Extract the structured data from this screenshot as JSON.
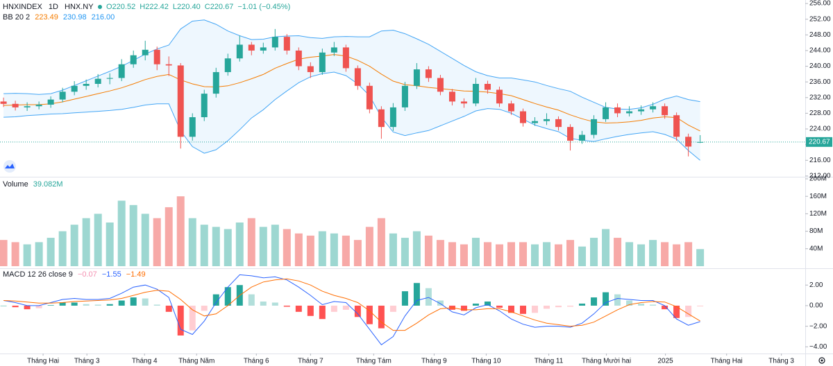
{
  "chart_data": [
    {
      "type": "candlestick",
      "title": "HNXINDEX",
      "interval": "1D",
      "exchange": "HNX.NY",
      "legend": [
        "O220.52",
        "H222.42",
        "L220.40",
        "C220.67",
        "−1.01 (−0.45%)"
      ],
      "up_color": "#26a69a",
      "down_color": "#ef5350",
      "xlim": [
        -0.3,
        67.9
      ],
      "xticks": [
        {
          "value": 3.35,
          "label": "Tháng Hai"
        },
        {
          "value": 7.06,
          "label": "Tháng 3"
        },
        {
          "value": 11.94,
          "label": "Tháng 4"
        },
        {
          "value": 16.35,
          "label": "Tháng Năm"
        },
        {
          "value": 21.41,
          "label": "Tháng 6"
        },
        {
          "value": 26.0,
          "label": "Tháng 7"
        },
        {
          "value": 31.35,
          "label": "Tháng Tám"
        },
        {
          "value": 36.47,
          "label": "Tháng 9"
        },
        {
          "value": 40.88,
          "label": "Tháng 10"
        },
        {
          "value": 46.18,
          "label": "Tháng 11"
        },
        {
          "value": 51.06,
          "label": "Tháng Mười hai"
        },
        {
          "value": 56.06,
          "label": "2025"
        },
        {
          "value": 61.24,
          "label": "Tháng Hai"
        },
        {
          "value": 65.88,
          "label": "Tháng 3"
        }
      ],
      "ylim": [
        211.8,
        256.9
      ],
      "yticks": [
        {
          "value": 212,
          "label": "212.00"
        },
        {
          "value": 216,
          "label": "216.00"
        },
        {
          "value": 220,
          "label": "220.00"
        },
        {
          "value": 224,
          "label": "224.00"
        },
        {
          "value": 228,
          "label": "228.00"
        },
        {
          "value": 232,
          "label": "232.00"
        },
        {
          "value": 236,
          "label": "236.00"
        },
        {
          "value": 240,
          "label": "240.00"
        },
        {
          "value": 244,
          "label": "244.00"
        },
        {
          "value": 248,
          "label": "248.00"
        },
        {
          "value": 252,
          "label": "252.00"
        },
        {
          "value": 256,
          "label": "256.00"
        }
      ],
      "open": [
        231.0,
        230.4,
        229.5,
        229.8,
        230.2,
        231.5,
        233.5,
        235.0,
        235.5,
        236.8,
        237.0,
        240.5,
        242.8,
        244.2,
        240.5,
        240.2,
        222.0,
        227.0,
        233.0,
        238.5,
        242.0,
        245.5,
        244.0,
        244.8,
        247.5,
        244.0,
        240.0,
        238.5,
        243.5,
        244.8,
        239.5,
        235.0,
        229.0,
        224.5,
        229.5,
        235.0,
        239.2,
        237.0,
        233.5,
        231.0,
        230.5,
        235.5,
        234.0,
        230.5,
        228.5,
        225.5,
        226.0,
        226.5,
        224.5,
        221.0,
        222.5,
        226.5,
        229.5,
        228.0,
        228.5,
        229.0,
        229.8,
        227.5,
        222.0,
        220.52
      ],
      "high": [
        232.0,
        231.2,
        230.8,
        231.0,
        232.3,
        234.5,
        236.2,
        236.6,
        238.0,
        238.2,
        241.8,
        244.0,
        246.5,
        245.0,
        242.5,
        240.8,
        228.0,
        234.0,
        239.6,
        243.2,
        247.8,
        246.2,
        246.0,
        249.5,
        248.2,
        244.8,
        241.0,
        244.5,
        246.2,
        245.5,
        240.2,
        235.8,
        229.8,
        230.6,
        236.0,
        240.8,
        240.0,
        237.8,
        234.2,
        231.8,
        237.0,
        236.3,
        234.8,
        231.2,
        229.2,
        227.0,
        228.0,
        227.2,
        225.2,
        223.5,
        227.5,
        230.8,
        230.5,
        229.8,
        230.0,
        230.8,
        230.5,
        228.2,
        222.8,
        222.42
      ],
      "low": [
        229.6,
        228.7,
        228.6,
        229.0,
        229.4,
        230.8,
        232.6,
        234.0,
        234.6,
        235.4,
        236.2,
        239.6,
        241.5,
        239.0,
        237.5,
        219.0,
        221.0,
        226.0,
        232.0,
        237.6,
        241.2,
        242.8,
        243.2,
        244.0,
        243.0,
        239.0,
        237.0,
        237.8,
        242.6,
        238.6,
        234.0,
        228.0,
        221.5,
        223.5,
        228.6,
        234.2,
        236.0,
        232.6,
        230.0,
        229.4,
        229.8,
        233.0,
        229.6,
        227.6,
        224.6,
        224.8,
        225.0,
        223.6,
        218.5,
        220.2,
        221.6,
        225.8,
        227.0,
        227.2,
        227.6,
        228.2,
        226.6,
        221.0,
        217.0,
        220.4
      ],
      "close": [
        230.4,
        229.5,
        229.8,
        230.2,
        231.5,
        233.5,
        235.0,
        235.5,
        236.8,
        237.0,
        240.5,
        242.8,
        244.2,
        240.5,
        240.2,
        222.0,
        227.0,
        233.0,
        238.5,
        242.0,
        245.5,
        244.0,
        244.8,
        247.5,
        244.0,
        240.0,
        238.5,
        243.5,
        244.8,
        239.5,
        235.0,
        229.0,
        224.5,
        229.5,
        235.0,
        239.2,
        237.0,
        233.5,
        231.0,
        230.5,
        235.5,
        234.0,
        230.5,
        228.5,
        225.5,
        226.0,
        226.5,
        224.5,
        221.0,
        222.5,
        226.5,
        229.5,
        228.0,
        228.5,
        229.0,
        229.8,
        227.5,
        222.0,
        219.5,
        220.67
      ],
      "bollinger": {
        "title": "BB 20 2",
        "legend_values": [
          "223.49",
          "230.98",
          "216.00"
        ],
        "fill": "rgba(33,150,243,0.08)",
        "series": [
          {
            "color": "#f57c00",
            "values": [
              230.0,
              230.1,
              230.2,
              230.2,
              230.4,
              230.9,
              231.6,
              232.3,
              233.0,
              233.7,
              234.5,
              235.5,
              236.6,
              237.4,
              237.9,
              236.5,
              235.5,
              234.8,
              234.7,
              235.0,
              235.8,
              236.8,
              237.9,
              239.5,
              240.7,
              241.8,
              242.3,
              242.6,
              243.0,
              242.6,
              241.5,
              240.0,
              238.0,
              236.2,
              235.3,
              235.0,
              234.6,
              234.3,
              234.0,
              233.7,
              233.6,
              233.4,
              233.0,
              232.5,
              231.5,
              230.5,
              229.6,
              228.8,
              227.6,
              226.6,
              225.8,
              225.5,
              225.6,
              225.8,
              226.2,
              226.8,
              227.1,
              226.9,
              225.0,
              223.49
            ]
          },
          {
            "color": "#42a5f5",
            "values": [
              233.0,
              233.1,
              233.0,
              232.8,
              233.0,
              233.9,
              235.1,
              236.3,
              237.5,
              238.7,
              240.0,
              241.5,
              243.1,
              244.4,
              245.4,
              249.5,
              251.5,
              251.8,
              250.7,
              249.0,
              247.8,
              246.8,
              246.9,
              247.5,
              247.7,
              247.8,
              247.3,
              247.1,
              247.5,
              247.6,
              247.5,
              247.5,
              249.0,
              249.2,
              248.3,
              247.0,
              245.6,
              243.8,
              242.0,
              240.2,
              238.6,
              237.6,
              237.0,
              237.0,
              236.5,
              236.0,
              235.1,
              234.3,
              233.6,
              232.1,
              230.8,
              229.5,
              229.1,
              229.0,
              229.4,
              230.3,
              231.6,
              232.4,
              231.5,
              230.98
            ]
          },
          {
            "color": "#42a5f5",
            "values": [
              227.0,
              227.1,
              227.4,
              227.6,
              227.8,
              227.9,
              228.1,
              228.3,
              228.5,
              228.7,
              229.0,
              229.5,
              230.1,
              230.4,
              230.4,
              223.5,
              219.5,
              217.8,
              218.7,
              221.0,
              223.8,
              226.8,
              228.9,
              231.5,
              233.7,
              235.8,
              237.3,
              238.1,
              238.5,
              237.6,
              235.5,
              232.5,
              227.0,
              223.2,
              222.3,
              223.0,
              223.6,
              224.8,
              226.0,
              227.2,
              228.6,
              229.2,
              229.0,
              228.0,
              226.5,
              225.0,
              224.1,
              223.3,
              221.6,
              221.1,
              220.8,
              221.5,
              222.1,
              222.6,
              223.0,
              223.3,
              222.6,
              221.4,
              218.5,
              216.0
            ]
          }
        ]
      }
    },
    {
      "type": "bar",
      "title": "Volume",
      "legend_value": "39.082M",
      "up_color": "rgba(38,166,154,0.45)",
      "down_color": "rgba(239,83,80,0.5)",
      "ylim": [
        0,
        200
      ],
      "yticks": [
        {
          "value": 40,
          "label": "40M"
        },
        {
          "value": 80,
          "label": "80M"
        },
        {
          "value": 120,
          "label": "120M"
        },
        {
          "value": 160,
          "label": "160M"
        },
        {
          "value": 200,
          "label": "200M"
        }
      ],
      "values": [
        60,
        55,
        50,
        55,
        65,
        80,
        95,
        110,
        120,
        100,
        150,
        140,
        120,
        110,
        135,
        160,
        110,
        95,
        90,
        85,
        100,
        110,
        90,
        95,
        85,
        75,
        70,
        80,
        75,
        70,
        60,
        90,
        110,
        75,
        65,
        80,
        70,
        60,
        55,
        50,
        65,
        55,
        50,
        55,
        55,
        50,
        55,
        50,
        60,
        45,
        65,
        85,
        65,
        55,
        50,
        60,
        55,
        50,
        55,
        39.082
      ]
    },
    {
      "type": "macd",
      "title": "MACD 12 26 close 9",
      "legend_values": [
        "−0.07",
        "−1.55",
        "−1.49"
      ],
      "ylim": [
        -4.65,
        3.43
      ],
      "yticks": [
        {
          "value": 2,
          "label": "2.00"
        },
        {
          "value": 0,
          "label": "0.00"
        },
        {
          "value": -2,
          "label": "−2.00"
        },
        {
          "value": -4,
          "label": "−4.00"
        }
      ],
      "histogram": {
        "colors": [
          "#26a69a",
          "#b2dfdb",
          "#ff5252",
          "#ffcdd2"
        ],
        "values": [
          0.0,
          -0.15,
          -0.35,
          -0.25,
          0.05,
          0.3,
          0.3,
          0.15,
          0.1,
          0.15,
          0.5,
          0.8,
          0.7,
          0.1,
          -0.6,
          -2.9,
          -2.4,
          -0.5,
          1.1,
          1.8,
          2.0,
          1.1,
          0.4,
          0.3,
          -0.1,
          -0.6,
          -1.0,
          -1.3,
          -0.6,
          -0.4,
          -1.1,
          -1.8,
          -2.2,
          -0.6,
          1.4,
          2.2,
          1.7,
          0.5,
          -0.4,
          -0.5,
          0.2,
          0.4,
          -0.2,
          -0.7,
          -0.8,
          -0.7,
          -0.3,
          -0.15,
          -0.1,
          0.2,
          0.8,
          1.3,
          1.1,
          0.5,
          0.2,
          0.1,
          -0.35,
          -1.2,
          -1.1,
          -0.07
        ]
      },
      "series": [
        {
          "color": "#2962ff",
          "values": [
            0.5,
            0.3,
            0.0,
            0.0,
            0.3,
            0.6,
            0.7,
            0.6,
            0.6,
            0.7,
            1.2,
            1.8,
            2.0,
            1.6,
            0.8,
            -2.3,
            -2.8,
            -1.5,
            0.3,
            1.8,
            3.0,
            2.9,
            2.7,
            2.8,
            2.5,
            1.8,
            1.0,
            0.1,
            0.4,
            0.3,
            -0.8,
            -2.3,
            -3.8,
            -3.0,
            -1.0,
            0.5,
            0.8,
            0.2,
            -0.6,
            -0.9,
            -0.2,
            0.1,
            -0.5,
            -1.3,
            -1.8,
            -2.1,
            -2.0,
            -2.0,
            -2.1,
            -1.7,
            -0.8,
            0.3,
            0.7,
            0.6,
            0.5,
            0.5,
            0.0,
            -1.3,
            -1.9,
            -1.55
          ]
        },
        {
          "color": "#ff6d00",
          "values": [
            0.5,
            0.45,
            0.35,
            0.25,
            0.25,
            0.3,
            0.4,
            0.45,
            0.5,
            0.55,
            0.7,
            1.0,
            1.3,
            1.5,
            1.4,
            0.6,
            -0.4,
            -1.0,
            -0.8,
            0.0,
            1.0,
            1.8,
            2.3,
            2.5,
            2.6,
            2.4,
            2.0,
            1.4,
            1.0,
            0.7,
            0.3,
            -0.5,
            -1.6,
            -2.4,
            -2.4,
            -1.7,
            -0.9,
            -0.3,
            -0.2,
            -0.4,
            -0.4,
            -0.3,
            -0.3,
            -0.6,
            -1.0,
            -1.4,
            -1.7,
            -1.85,
            -2.0,
            -1.9,
            -1.6,
            -1.0,
            -0.4,
            0.1,
            0.3,
            0.4,
            0.35,
            -0.1,
            -0.8,
            -1.49
          ]
        }
      ]
    }
  ]
}
